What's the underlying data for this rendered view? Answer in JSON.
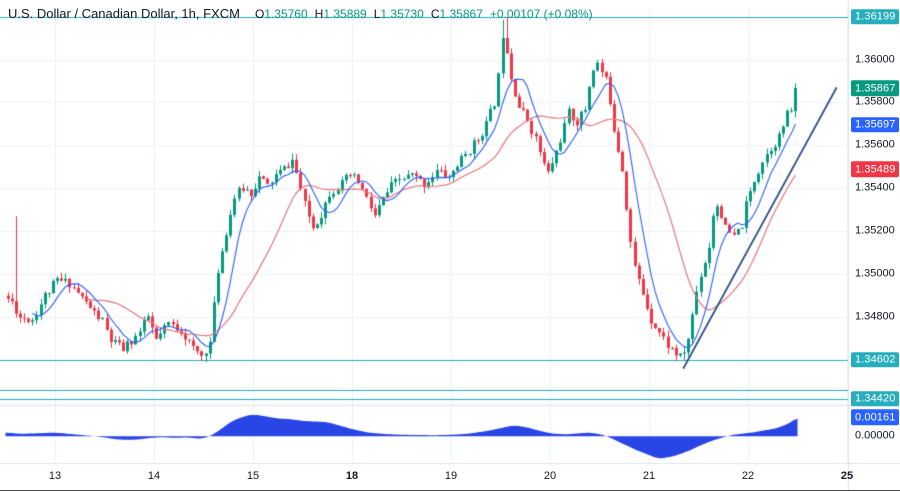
{
  "header": {
    "symbol_line": "U.S. Dollar / Canadian Dollar, 1h, FXCM",
    "ohlc": [
      {
        "label": "O",
        "value": "1.35760"
      },
      {
        "label": "H",
        "value": "1.35889"
      },
      {
        "label": "L",
        "value": "1.35730"
      },
      {
        "label": "C",
        "value": "1.35867"
      }
    ],
    "change": "+0.00107 (+0.08%)"
  },
  "colors": {
    "up": "#089981",
    "down": "#f23645",
    "teal": "#27aebe",
    "blue": "#2962ff",
    "ma_fast": "#2962ff",
    "ma_slow": "#e8787d",
    "indicator_fill": "#2945e6",
    "trend": "#234a86",
    "grid": "#eef1f6",
    "separator": "#e0e3eb",
    "axis_text": "#131722"
  },
  "chart_data": {
    "type": "candlestick",
    "title": "U.S. Dollar / Canadian Dollar, 1h, FXCM",
    "price_range_visible": [
      1.344,
      1.3624
    ],
    "price_pane": {
      "num_candles": 192,
      "close_anchors": [
        [
          0,
          1.349
        ],
        [
          2,
          1.3487
        ],
        [
          4,
          1.348
        ],
        [
          7,
          1.3479
        ],
        [
          10,
          1.349
        ],
        [
          13,
          1.3497
        ],
        [
          16,
          1.3496
        ],
        [
          19,
          1.3489
        ],
        [
          22,
          1.3482
        ],
        [
          24,
          1.3478
        ],
        [
          26,
          1.3469
        ],
        [
          29,
          1.3465
        ],
        [
          33,
          1.3473
        ],
        [
          35,
          1.348
        ],
        [
          37,
          1.3469
        ],
        [
          40,
          1.3477
        ],
        [
          43,
          1.3474
        ],
        [
          46,
          1.3465
        ],
        [
          48,
          1.3462
        ],
        [
          50,
          1.3468
        ],
        [
          51,
          1.3485
        ],
        [
          52,
          1.3502
        ],
        [
          54,
          1.352
        ],
        [
          56,
          1.3536
        ],
        [
          58,
          1.354
        ],
        [
          60,
          1.3538
        ],
        [
          62,
          1.3545
        ],
        [
          64,
          1.3541
        ],
        [
          66,
          1.3546
        ],
        [
          68,
          1.3549
        ],
        [
          70,
          1.3553
        ],
        [
          71,
          1.3547
        ],
        [
          73,
          1.3532
        ],
        [
          75,
          1.3522
        ],
        [
          77,
          1.3528
        ],
        [
          79,
          1.3538
        ],
        [
          82,
          1.3542
        ],
        [
          84,
          1.3546
        ],
        [
          86,
          1.3543
        ],
        [
          88,
          1.3535
        ],
        [
          90,
          1.3527
        ],
        [
          92,
          1.3535
        ],
        [
          94,
          1.3541
        ],
        [
          96,
          1.3544
        ],
        [
          99,
          1.3546
        ],
        [
          102,
          1.3542
        ],
        [
          105,
          1.3548
        ],
        [
          108,
          1.3545
        ],
        [
          110,
          1.3551
        ],
        [
          113,
          1.3558
        ],
        [
          115,
          1.3563
        ],
        [
          117,
          1.357
        ],
        [
          119,
          1.358
        ],
        [
          120,
          1.3592
        ],
        [
          121,
          1.3612
        ],
        [
          122,
          1.3605
        ],
        [
          123,
          1.3592
        ],
        [
          125,
          1.3578
        ],
        [
          127,
          1.3572
        ],
        [
          129,
          1.3563
        ],
        [
          131,
          1.3551
        ],
        [
          132,
          1.3547
        ],
        [
          134,
          1.3557
        ],
        [
          136,
          1.3569
        ],
        [
          137,
          1.3575
        ],
        [
          139,
          1.3571
        ],
        [
          141,
          1.3577
        ],
        [
          142,
          1.3588
        ],
        [
          143,
          1.3596
        ],
        [
          144,
          1.3598
        ],
        [
          146,
          1.359
        ],
        [
          147,
          1.3581
        ],
        [
          148,
          1.3568
        ],
        [
          150,
          1.3549
        ],
        [
          151,
          1.3532
        ],
        [
          152,
          1.3515
        ],
        [
          153,
          1.3503
        ],
        [
          155,
          1.3491
        ],
        [
          157,
          1.3479
        ],
        [
          159,
          1.3473
        ],
        [
          161,
          1.3467
        ],
        [
          163,
          1.3463
        ],
        [
          164,
          1.3461
        ],
        [
          165,
          1.3464
        ],
        [
          166,
          1.347
        ],
        [
          167,
          1.3481
        ],
        [
          168,
          1.3492
        ],
        [
          169,
          1.35
        ],
        [
          170,
          1.3506
        ],
        [
          171,
          1.3513
        ],
        [
          172,
          1.3528
        ],
        [
          173,
          1.3532
        ],
        [
          174,
          1.3528
        ],
        [
          175,
          1.3521
        ],
        [
          177,
          1.3517
        ],
        [
          179,
          1.3523
        ],
        [
          180,
          1.3532
        ],
        [
          182,
          1.3544
        ],
        [
          184,
          1.3553
        ],
        [
          186,
          1.3559
        ],
        [
          188,
          1.3564
        ],
        [
          189,
          1.3569
        ],
        [
          190,
          1.3574
        ],
        [
          191,
          1.3577
        ],
        [
          192,
          1.35867
        ]
      ],
      "wick_spikes": [
        {
          "i": 2,
          "h": 1.3527
        },
        {
          "i": 120,
          "h": 1.36185
        },
        {
          "i": 121,
          "h": 1.36199
        },
        {
          "i": 48,
          "l": 1.34602
        },
        {
          "i": 164,
          "l": 1.34598
        }
      ],
      "last_candle": {
        "o": 1.3576,
        "h": 1.35889,
        "l": 1.3573,
        "c": 1.35867
      },
      "ma_fast_period": 7,
      "ma_slow_period": 20,
      "levels": [
        {
          "price": 1.36199
        },
        {
          "price": 1.34602
        },
        {
          "price": 1.3446
        },
        {
          "price": 1.3442
        }
      ],
      "trend_line": {
        "t1": 164.3,
        "p1": 1.3456,
        "t2": 201.5,
        "p2": 1.3587
      }
    },
    "indicator_pane": {
      "value_range_visible": [
        -0.0022,
        0.0024
      ],
      "anchors": [
        [
          0,
          0.0003
        ],
        [
          4,
          0.0002
        ],
        [
          8,
          0.00025
        ],
        [
          12,
          0.0003
        ],
        [
          16,
          0.00018
        ],
        [
          20,
          5e-05
        ],
        [
          24,
          -0.0001
        ],
        [
          27,
          -0.00028
        ],
        [
          31,
          -0.00032
        ],
        [
          35,
          -0.00015
        ],
        [
          38,
          -8e-05
        ],
        [
          41,
          -0.00015
        ],
        [
          44,
          -0.0001
        ],
        [
          47,
          -0.00022
        ],
        [
          49,
          -0.0001
        ],
        [
          51,
          0.0003
        ],
        [
          53,
          0.0008
        ],
        [
          55,
          0.0013
        ],
        [
          58,
          0.0017
        ],
        [
          60,
          0.00185
        ],
        [
          63,
          0.0017
        ],
        [
          66,
          0.0015
        ],
        [
          69,
          0.00145
        ],
        [
          72,
          0.0013
        ],
        [
          75,
          0.00125
        ],
        [
          78,
          0.0012
        ],
        [
          81,
          0.0009
        ],
        [
          84,
          0.0006
        ],
        [
          88,
          0.0003
        ],
        [
          92,
          0.00018
        ],
        [
          96,
          0.00012
        ],
        [
          100,
          0.0001
        ],
        [
          104,
          8e-05
        ],
        [
          108,
          0.00012
        ],
        [
          112,
          0.0002
        ],
        [
          116,
          0.0004
        ],
        [
          119,
          0.0006
        ],
        [
          122,
          0.00085
        ],
        [
          124,
          0.0009
        ],
        [
          127,
          0.0007
        ],
        [
          130,
          0.0004
        ],
        [
          133,
          0.0002
        ],
        [
          136,
          0.00015
        ],
        [
          139,
          0.00025
        ],
        [
          142,
          0.0003
        ],
        [
          145,
          0.0001
        ],
        [
          147,
          -0.0002
        ],
        [
          150,
          -0.0007
        ],
        [
          153,
          -0.0012
        ],
        [
          156,
          -0.0016
        ],
        [
          158,
          -0.0019
        ],
        [
          160,
          -0.00185
        ],
        [
          163,
          -0.0016
        ],
        [
          166,
          -0.0012
        ],
        [
          169,
          -0.0007
        ],
        [
          172,
          -0.0003
        ],
        [
          174,
          -0.0001
        ],
        [
          176,
          0.0001
        ],
        [
          178,
          0.0002
        ],
        [
          181,
          0.0003
        ],
        [
          184,
          0.0005
        ],
        [
          186,
          0.0006
        ],
        [
          188,
          0.0008
        ],
        [
          190,
          0.0011
        ],
        [
          192,
          0.00161
        ]
      ],
      "zero_label": {
        "text": "0.00000",
        "value": 0
      }
    },
    "price_axis": {
      "gridline_prices": [
        1.36,
        1.358,
        1.356,
        1.354,
        1.352,
        1.35,
        1.348
      ],
      "labels": [
        {
          "text": "1.36000",
          "price": 1.36
        },
        {
          "text": "1.35800",
          "price": 1.358
        },
        {
          "text": "1.35600",
          "price": 1.356
        },
        {
          "text": "1.35400",
          "price": 1.354
        },
        {
          "text": "1.35200",
          "price": 1.352
        },
        {
          "text": "1.35000",
          "price": 1.35
        },
        {
          "text": "1.34800",
          "price": 1.348
        }
      ],
      "badges": [
        {
          "text": "1.36199",
          "price": 1.36199,
          "color": "teal",
          "pane": "price",
          "name": "level-high-badge"
        },
        {
          "text": "1.35867",
          "price": 1.35867,
          "color": "up",
          "pane": "price",
          "name": "last-price-badge"
        },
        {
          "text": "1.35697",
          "price": 1.35697,
          "color": "blue",
          "pane": "price",
          "name": "ma-fast-badge"
        },
        {
          "text": "1.35489",
          "price": 1.35489,
          "color": "down",
          "pane": "price",
          "name": "ma-slow-badge"
        },
        {
          "text": "1.34602",
          "price": 1.34602,
          "color": "teal",
          "pane": "price",
          "name": "level-support-badge"
        },
        {
          "text": "1.34420",
          "price": 1.3442,
          "color": "teal",
          "pane": "price",
          "name": "level-lower-badge"
        },
        {
          "text": "0.00161",
          "value": 0.00161,
          "color": "blue",
          "pane": "indicator",
          "name": "indicator-value-badge"
        }
      ]
    },
    "time_axis": {
      "labels": [
        {
          "text": "13",
          "bold": false
        },
        {
          "text": "14",
          "bold": false
        },
        {
          "text": "15",
          "bold": false
        },
        {
          "text": "18",
          "bold": true
        },
        {
          "text": "19",
          "bold": false
        },
        {
          "text": "20",
          "bold": false
        },
        {
          "text": "21",
          "bold": false
        },
        {
          "text": "22",
          "bold": false
        },
        {
          "text": "25",
          "bold": true
        }
      ]
    }
  }
}
